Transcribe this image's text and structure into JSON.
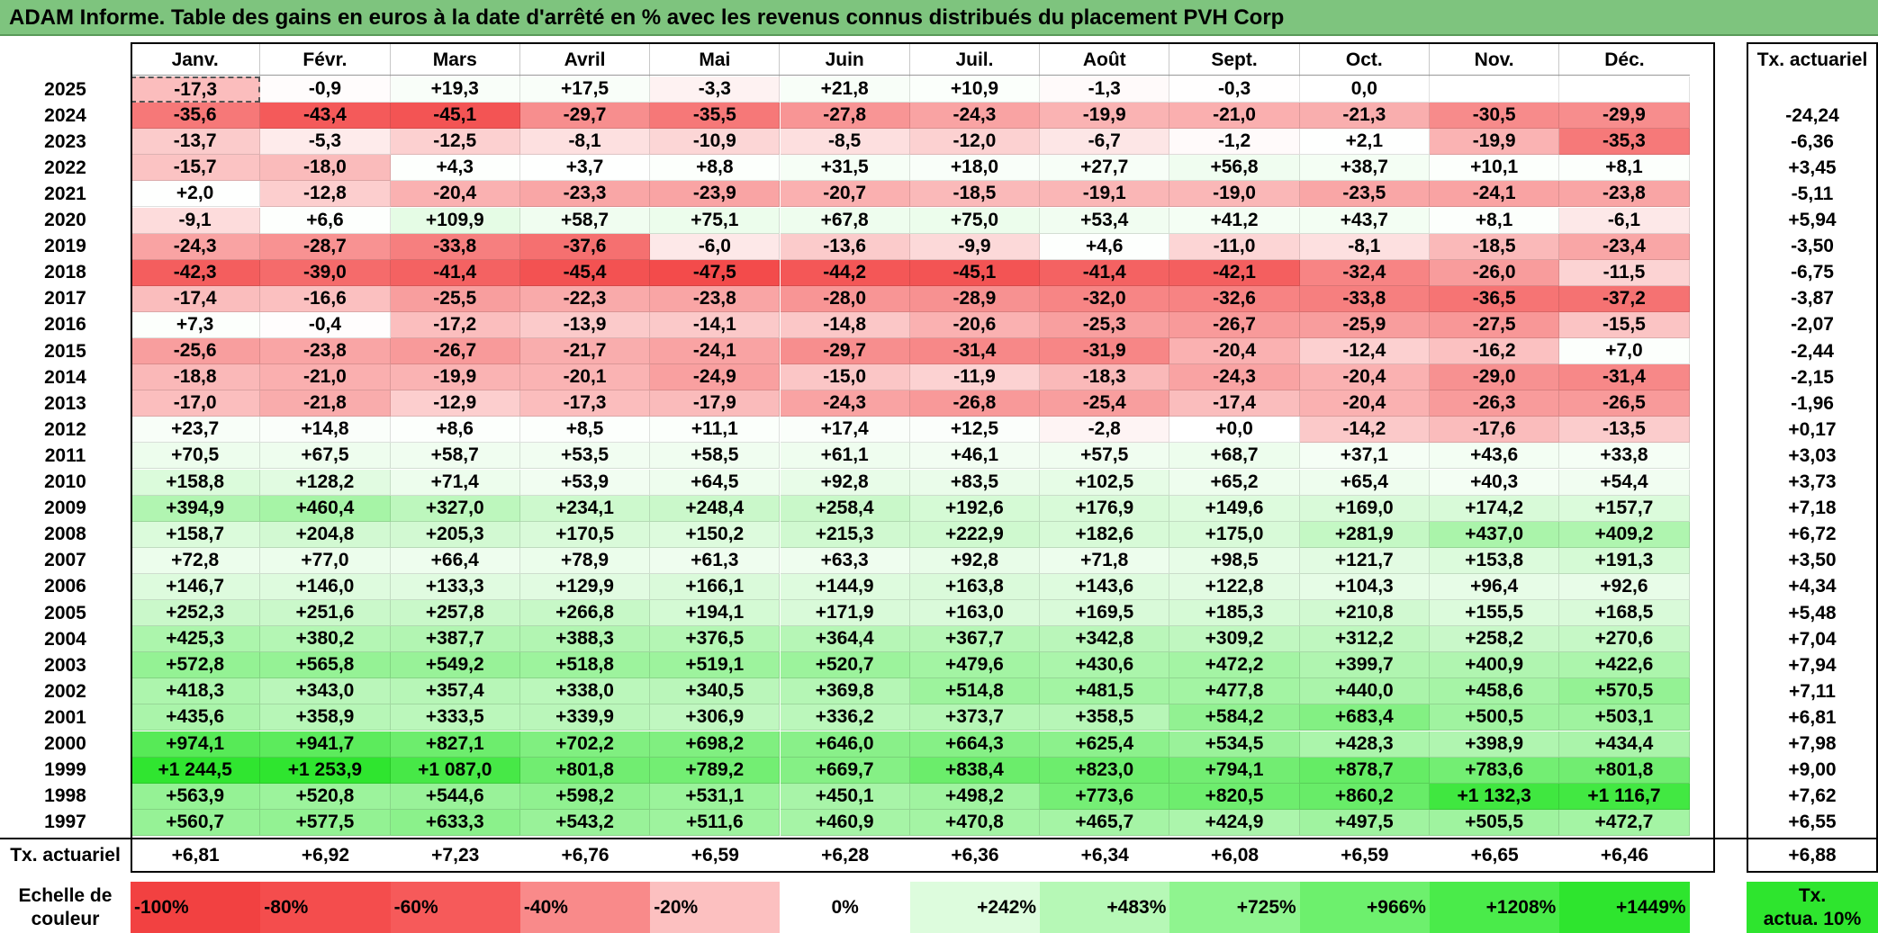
{
  "title": "ADAM Informe. Table des gains en euros à la date d'arrêté en % avec les revenus connus distribués du placement PVH Corp",
  "months": [
    "Janv.",
    "Févr.",
    "Mars",
    "Avril",
    "Mai",
    "Juin",
    "Juil.",
    "Août",
    "Sept.",
    "Oct.",
    "Nov.",
    "Déc."
  ],
  "rate_header": "Tx. actuariel",
  "rows": [
    {
      "year": "2025",
      "values": [
        "-17,3",
        "-0,9",
        "+19,3",
        "+17,5",
        "-3,3",
        "+21,8",
        "+10,9",
        "-1,3",
        "-0,3",
        "0,0",
        "",
        ""
      ],
      "rate": ""
    },
    {
      "year": "2024",
      "values": [
        "-35,6",
        "-43,4",
        "-45,1",
        "-29,7",
        "-35,5",
        "-27,8",
        "-24,3",
        "-19,9",
        "-21,0",
        "-21,3",
        "-30,5",
        "-29,9"
      ],
      "rate": "-24,24"
    },
    {
      "year": "2023",
      "values": [
        "-13,7",
        "-5,3",
        "-12,5",
        "-8,1",
        "-10,9",
        "-8,5",
        "-12,0",
        "-6,7",
        "-1,2",
        "+2,1",
        "-19,9",
        "-35,3"
      ],
      "rate": "-6,36"
    },
    {
      "year": "2022",
      "values": [
        "-15,7",
        "-18,0",
        "+4,3",
        "+3,7",
        "+8,8",
        "+31,5",
        "+18,0",
        "+27,7",
        "+56,8",
        "+38,7",
        "+10,1",
        "+8,1"
      ],
      "rate": "+3,45"
    },
    {
      "year": "2021",
      "values": [
        "+2,0",
        "-12,8",
        "-20,4",
        "-23,3",
        "-23,9",
        "-20,7",
        "-18,5",
        "-19,1",
        "-19,0",
        "-23,5",
        "-24,1",
        "-23,8"
      ],
      "rate": "-5,11"
    },
    {
      "year": "2020",
      "values": [
        "-9,1",
        "+6,6",
        "+109,9",
        "+58,7",
        "+75,1",
        "+67,8",
        "+75,0",
        "+53,4",
        "+41,2",
        "+43,7",
        "+8,1",
        "-6,1"
      ],
      "rate": "+5,94"
    },
    {
      "year": "2019",
      "values": [
        "-24,3",
        "-28,7",
        "-33,8",
        "-37,6",
        "-6,0",
        "-13,6",
        "-9,9",
        "+4,6",
        "-11,0",
        "-8,1",
        "-18,5",
        "-23,4"
      ],
      "rate": "-3,50"
    },
    {
      "year": "2018",
      "values": [
        "-42,3",
        "-39,0",
        "-41,4",
        "-45,4",
        "-47,5",
        "-44,2",
        "-45,1",
        "-41,4",
        "-42,1",
        "-32,4",
        "-26,0",
        "-11,5"
      ],
      "rate": "-6,75"
    },
    {
      "year": "2017",
      "values": [
        "-17,4",
        "-16,6",
        "-25,5",
        "-22,3",
        "-23,8",
        "-28,0",
        "-28,9",
        "-32,0",
        "-32,6",
        "-33,8",
        "-36,5",
        "-37,2"
      ],
      "rate": "-3,87"
    },
    {
      "year": "2016",
      "values": [
        "+7,3",
        "-0,4",
        "-17,2",
        "-13,9",
        "-14,1",
        "-14,8",
        "-20,6",
        "-25,3",
        "-26,7",
        "-25,9",
        "-27,5",
        "-15,5"
      ],
      "rate": "-2,07"
    },
    {
      "year": "2015",
      "values": [
        "-25,6",
        "-23,8",
        "-26,7",
        "-21,7",
        "-24,1",
        "-29,7",
        "-31,4",
        "-31,9",
        "-20,4",
        "-12,4",
        "-16,2",
        "+7,0"
      ],
      "rate": "-2,44"
    },
    {
      "year": "2014",
      "values": [
        "-18,8",
        "-21,0",
        "-19,9",
        "-20,1",
        "-24,9",
        "-15,0",
        "-11,9",
        "-18,3",
        "-24,3",
        "-20,4",
        "-29,0",
        "-31,4"
      ],
      "rate": "-2,15"
    },
    {
      "year": "2013",
      "values": [
        "-17,0",
        "-21,8",
        "-12,9",
        "-17,3",
        "-17,9",
        "-24,3",
        "-26,8",
        "-25,4",
        "-17,4",
        "-20,4",
        "-26,3",
        "-26,5"
      ],
      "rate": "-1,96"
    },
    {
      "year": "2012",
      "values": [
        "+23,7",
        "+14,8",
        "+8,6",
        "+8,5",
        "+11,1",
        "+17,4",
        "+12,5",
        "-2,8",
        "+0,0",
        "-14,2",
        "-17,6",
        "-13,5"
      ],
      "rate": "+0,17"
    },
    {
      "year": "2011",
      "values": [
        "+70,5",
        "+67,5",
        "+58,7",
        "+53,5",
        "+58,5",
        "+61,1",
        "+46,1",
        "+57,5",
        "+68,7",
        "+37,1",
        "+43,6",
        "+33,8"
      ],
      "rate": "+3,03"
    },
    {
      "year": "2010",
      "values": [
        "+158,8",
        "+128,2",
        "+71,4",
        "+53,9",
        "+64,5",
        "+92,8",
        "+83,5",
        "+102,5",
        "+65,2",
        "+65,4",
        "+40,3",
        "+54,4"
      ],
      "rate": "+3,73"
    },
    {
      "year": "2009",
      "values": [
        "+394,9",
        "+460,4",
        "+327,0",
        "+234,1",
        "+248,4",
        "+258,4",
        "+192,6",
        "+176,9",
        "+149,6",
        "+169,0",
        "+174,2",
        "+157,7"
      ],
      "rate": "+7,18"
    },
    {
      "year": "2008",
      "values": [
        "+158,7",
        "+204,8",
        "+205,3",
        "+170,5",
        "+150,2",
        "+215,3",
        "+222,9",
        "+182,6",
        "+175,0",
        "+281,9",
        "+437,0",
        "+409,2"
      ],
      "rate": "+6,72"
    },
    {
      "year": "2007",
      "values": [
        "+72,8",
        "+77,0",
        "+66,4",
        "+78,9",
        "+61,3",
        "+63,3",
        "+92,8",
        "+71,8",
        "+98,5",
        "+121,7",
        "+153,8",
        "+191,3"
      ],
      "rate": "+3,50"
    },
    {
      "year": "2006",
      "values": [
        "+146,7",
        "+146,0",
        "+133,3",
        "+129,9",
        "+166,1",
        "+144,9",
        "+163,8",
        "+143,6",
        "+122,8",
        "+104,3",
        "+96,4",
        "+92,6"
      ],
      "rate": "+4,34"
    },
    {
      "year": "2005",
      "values": [
        "+252,3",
        "+251,6",
        "+257,8",
        "+266,8",
        "+194,1",
        "+171,9",
        "+163,0",
        "+169,5",
        "+185,3",
        "+210,8",
        "+155,5",
        "+168,5"
      ],
      "rate": "+5,48"
    },
    {
      "year": "2004",
      "values": [
        "+425,3",
        "+380,2",
        "+387,7",
        "+388,3",
        "+376,5",
        "+364,4",
        "+367,7",
        "+342,8",
        "+309,2",
        "+312,2",
        "+258,2",
        "+270,6"
      ],
      "rate": "+7,04"
    },
    {
      "year": "2003",
      "values": [
        "+572,8",
        "+565,8",
        "+549,2",
        "+518,8",
        "+519,1",
        "+520,7",
        "+479,6",
        "+430,6",
        "+472,2",
        "+399,7",
        "+400,9",
        "+422,6"
      ],
      "rate": "+7,94"
    },
    {
      "year": "2002",
      "values": [
        "+418,3",
        "+343,0",
        "+357,4",
        "+338,0",
        "+340,5",
        "+369,8",
        "+514,8",
        "+481,5",
        "+477,8",
        "+440,0",
        "+458,6",
        "+570,5"
      ],
      "rate": "+7,11"
    },
    {
      "year": "2001",
      "values": [
        "+435,6",
        "+358,9",
        "+333,5",
        "+339,9",
        "+306,9",
        "+336,2",
        "+373,7",
        "+358,5",
        "+584,2",
        "+683,4",
        "+500,5",
        "+503,1"
      ],
      "rate": "+6,81"
    },
    {
      "year": "2000",
      "values": [
        "+974,1",
        "+941,7",
        "+827,1",
        "+702,2",
        "+698,2",
        "+646,0",
        "+664,3",
        "+625,4",
        "+534,5",
        "+428,3",
        "+398,9",
        "+434,4"
      ],
      "rate": "+7,98"
    },
    {
      "year": "1999",
      "values": [
        "+1 244,5",
        "+1 253,9",
        "+1 087,0",
        "+801,8",
        "+789,2",
        "+669,7",
        "+838,4",
        "+823,0",
        "+794,1",
        "+878,7",
        "+783,6",
        "+801,8"
      ],
      "rate": "+9,00"
    },
    {
      "year": "1998",
      "values": [
        "+563,9",
        "+520,8",
        "+544,6",
        "+598,2",
        "+531,1",
        "+450,1",
        "+498,2",
        "+773,6",
        "+820,5",
        "+860,2",
        "+1 132,3",
        "+1 116,7"
      ],
      "rate": "+7,62"
    },
    {
      "year": "1997",
      "values": [
        "+560,7",
        "+577,5",
        "+633,3",
        "+543,2",
        "+511,6",
        "+460,9",
        "+470,8",
        "+465,7",
        "+424,9",
        "+497,5",
        "+505,5",
        "+472,7"
      ],
      "rate": "+6,55"
    }
  ],
  "footer": {
    "label": "Tx. actuariel",
    "values": [
      "+6,81",
      "+6,92",
      "+7,23",
      "+6,76",
      "+6,59",
      "+6,28",
      "+6,36",
      "+6,34",
      "+6,08",
      "+6,59",
      "+6,65",
      "+6,46"
    ],
    "overall": "+6,88"
  },
  "scale": {
    "label_line1": "Echelle de",
    "label_line2": "couleur",
    "items": [
      {
        "label": "-100%",
        "color": "#f24141",
        "align": "left"
      },
      {
        "label": "-80%",
        "color": "#f44d4d",
        "align": "left"
      },
      {
        "label": "-60%",
        "color": "#f65a5a",
        "align": "left"
      },
      {
        "label": "-40%",
        "color": "#f98a8a",
        "align": "left"
      },
      {
        "label": "-20%",
        "color": "#fcc0c0",
        "align": "left"
      },
      {
        "label": "0%",
        "color": "#ffffff",
        "align": "center"
      },
      {
        "label": "+242%",
        "color": "#ddfcdd",
        "align": "right"
      },
      {
        "label": "+483%",
        "color": "#b6f8b6",
        "align": "right"
      },
      {
        "label": "+725%",
        "color": "#8ff48f",
        "align": "right"
      },
      {
        "label": "+966%",
        "color": "#6df06d",
        "align": "right"
      },
      {
        "label": "+1208%",
        "color": "#4aeb4a",
        "align": "right"
      },
      {
        "label": "+1449%",
        "color": "#2ee52e",
        "align": "right"
      }
    ],
    "target_line1": "Tx.",
    "target_line2": "actua. 10%",
    "target_color": "#2ee52e"
  },
  "colors": {
    "title_bar": "#7ec47e",
    "negative_max": "#f24141",
    "positive_max": "#2ee52e",
    "neutral": "#ffffff"
  }
}
